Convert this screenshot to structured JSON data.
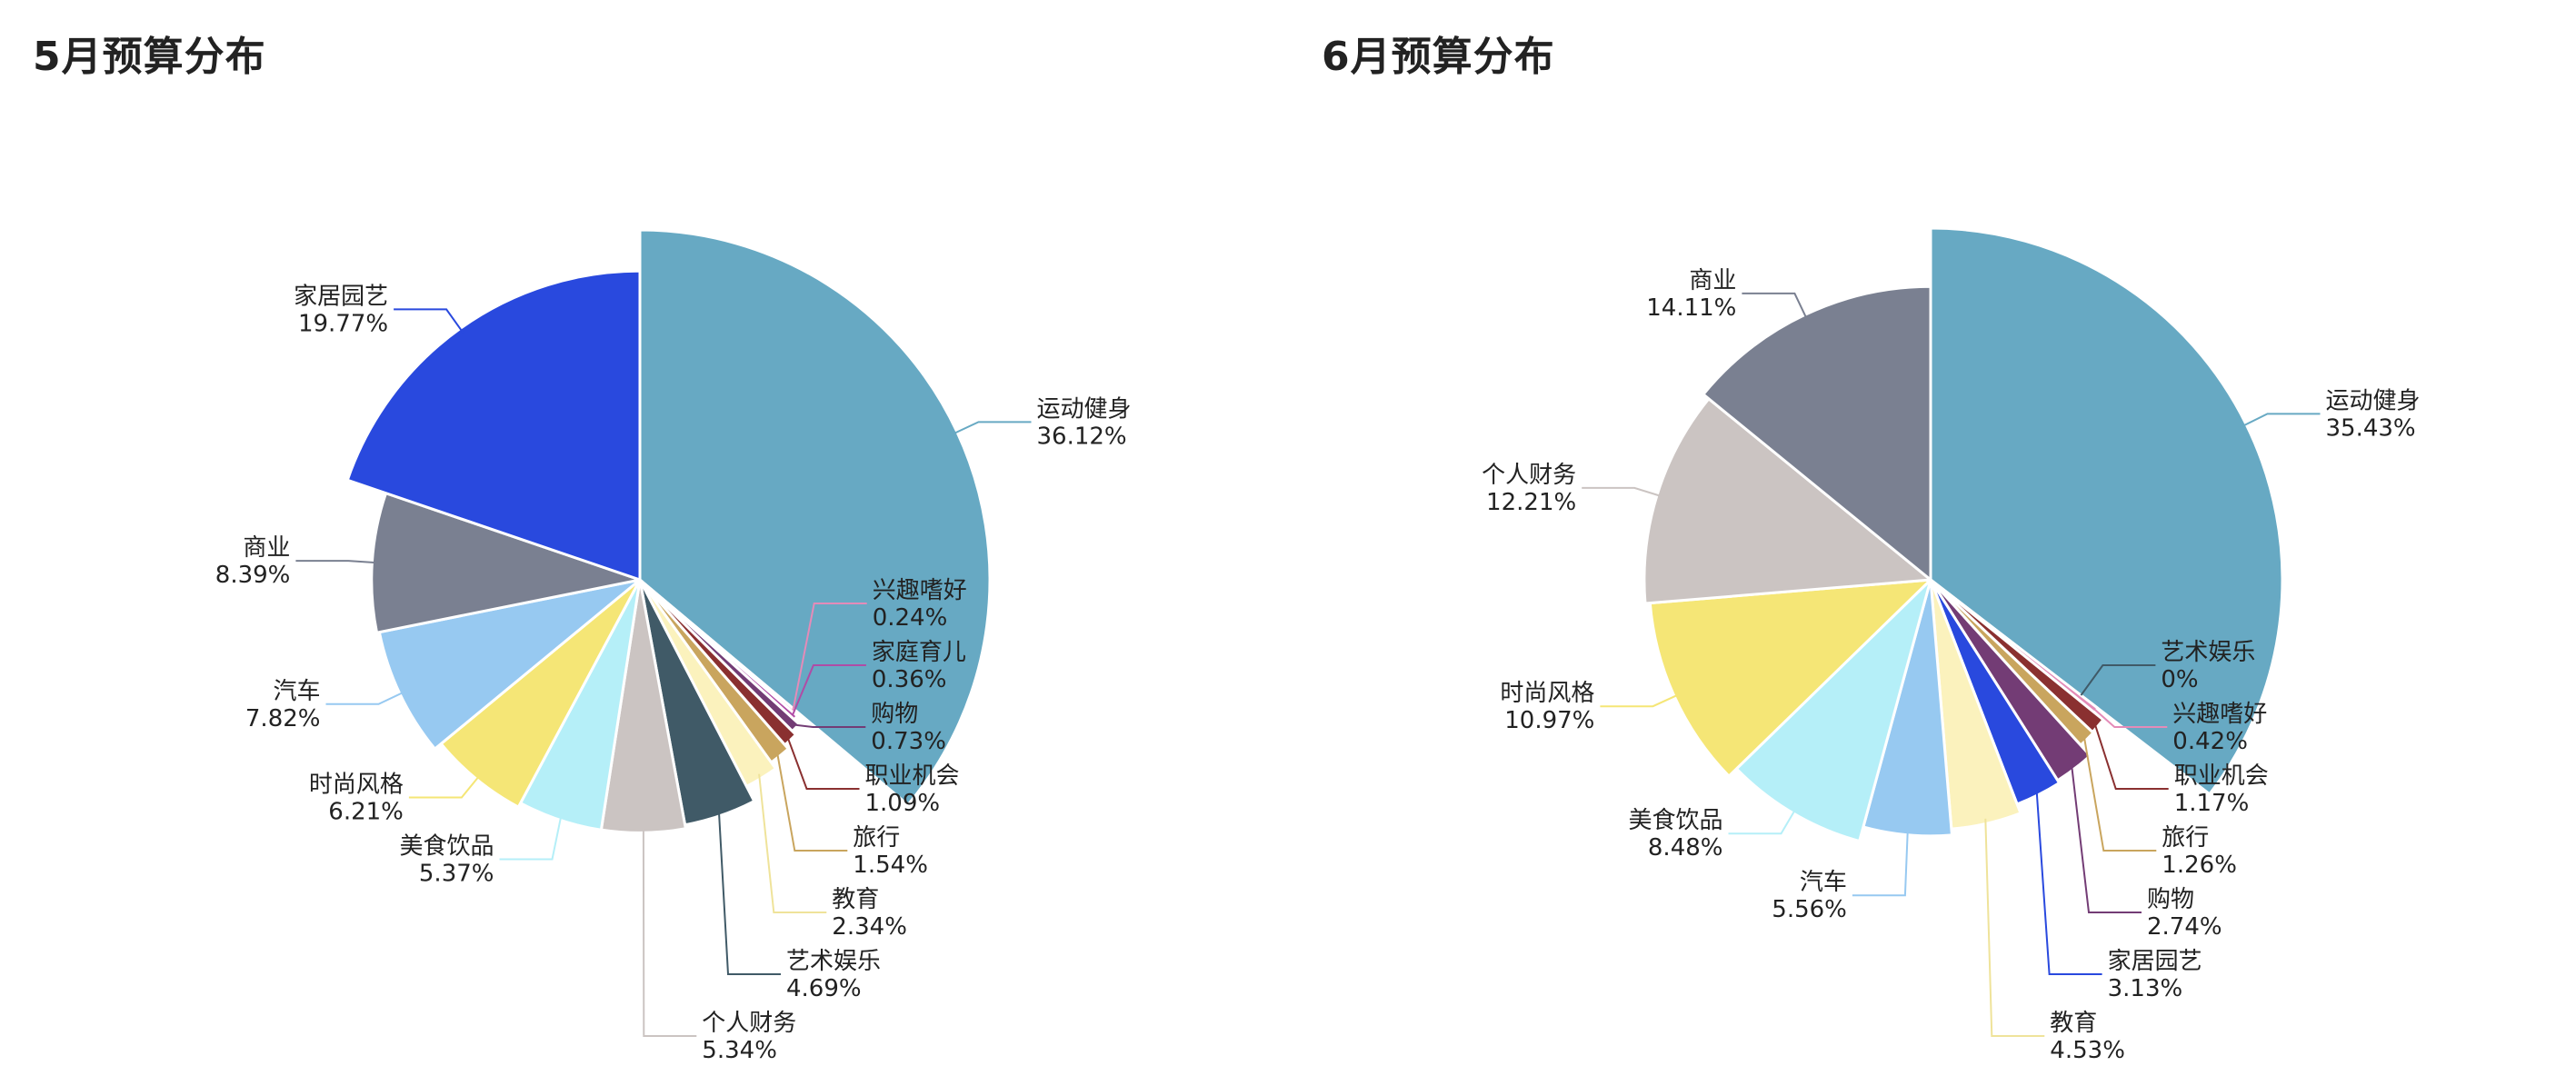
{
  "chart_data": [
    {
      "type": "pie",
      "title": "5月预算分布",
      "slices": [
        {
          "label": "运动健身",
          "value": 36.12,
          "display": "36.12%",
          "color": "#67a9c3"
        },
        {
          "label": "兴趣嗜好",
          "value": 0.24,
          "display": "0.24%",
          "color": "#e48bb8"
        },
        {
          "label": "家庭育儿",
          "value": 0.36,
          "display": "0.36%",
          "color": "#b04ca6"
        },
        {
          "label": "购物",
          "value": 0.73,
          "display": "0.73%",
          "color": "#733c75"
        },
        {
          "label": "职业机会",
          "value": 1.09,
          "display": "1.09%",
          "color": "#8a3030"
        },
        {
          "label": "旅行",
          "value": 1.54,
          "display": "1.54%",
          "color": "#c9a55e"
        },
        {
          "label": "教育",
          "value": 2.34,
          "display": "2.34%",
          "color": "#fbf2bd"
        },
        {
          "label": "艺术娱乐",
          "value": 4.69,
          "display": "4.69%",
          "color": "#405a67"
        },
        {
          "label": "个人财务",
          "value": 5.34,
          "display": "5.34%",
          "color": "#cbc4c2"
        },
        {
          "label": "美食饮品",
          "value": 5.37,
          "display": "5.37%",
          "color": "#b5eff8"
        },
        {
          "label": "时尚风格",
          "value": 6.21,
          "display": "6.21%",
          "color": "#f5e676"
        },
        {
          "label": "汽车",
          "value": 7.82,
          "display": "7.82%",
          "color": "#97c9f1"
        },
        {
          "label": "商业",
          "value": 8.39,
          "display": "8.39%",
          "color": "#7a8091"
        },
        {
          "label": "家居园艺",
          "value": 19.77,
          "display": "19.77%",
          "color": "#2949de"
        }
      ]
    },
    {
      "type": "pie",
      "title": "6月预算分布",
      "slices": [
        {
          "label": "运动健身",
          "value": 35.43,
          "display": "35.43%",
          "color": "#67a9c3"
        },
        {
          "label": "艺术娱乐",
          "value": 0,
          "display": "0%",
          "color": "#405a67"
        },
        {
          "label": "兴趣嗜好",
          "value": 0.42,
          "display": "0.42%",
          "color": "#e48bb8"
        },
        {
          "label": "职业机会",
          "value": 1.17,
          "display": "1.17%",
          "color": "#8a3030"
        },
        {
          "label": "旅行",
          "value": 1.26,
          "display": "1.26%",
          "color": "#c9a55e"
        },
        {
          "label": "购物",
          "value": 2.74,
          "display": "2.74%",
          "color": "#733c75"
        },
        {
          "label": "家居园艺",
          "value": 3.13,
          "display": "3.13%",
          "color": "#2949de"
        },
        {
          "label": "教育",
          "value": 4.53,
          "display": "4.53%",
          "color": "#fbf2bd"
        },
        {
          "label": "汽车",
          "value": 5.56,
          "display": "5.56%",
          "color": "#97c9f1"
        },
        {
          "label": "美食饮品",
          "value": 8.48,
          "display": "8.48%",
          "color": "#b5eff8"
        },
        {
          "label": "时尚风格",
          "value": 10.97,
          "display": "10.97%",
          "color": "#f5e676"
        },
        {
          "label": "个人财务",
          "value": 12.21,
          "display": "12.21%",
          "color": "#cbc4c2"
        },
        {
          "label": "商业",
          "value": 14.11,
          "display": "14.11%",
          "color": "#7a8091"
        }
      ]
    }
  ]
}
